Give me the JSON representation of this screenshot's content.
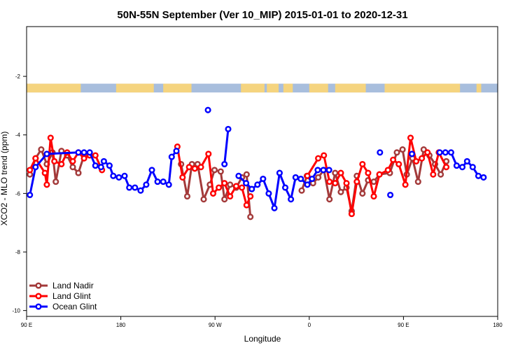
{
  "chart_data": {
    "type": "line",
    "title": "50N-55N September (Ver 10_MIP)   2015-01-01 to 2020-12-31",
    "xlabel": "Longitude",
    "ylabel": "XCO2 - MLO trend (ppm)",
    "xlim": [
      0,
      1
    ],
    "ylim": [
      -10.2,
      -0.3
    ],
    "x_ticks": [
      {
        "pos": 0.0,
        "label": "90 E"
      },
      {
        "pos": 0.2,
        "label": "180"
      },
      {
        "pos": 0.4,
        "label": "90 W"
      },
      {
        "pos": 0.6,
        "label": "0"
      },
      {
        "pos": 0.8,
        "label": "90 E"
      },
      {
        "pos": 1.0,
        "label": "180"
      }
    ],
    "y_ticks": [
      -2,
      -4,
      -6,
      -8,
      -10
    ],
    "grid": false,
    "legend_position": "bottom-left",
    "land_strip": {
      "y_top": -2.25,
      "y_bottom": -2.55,
      "ocean_color": "#a8bedd",
      "land_color": "#f5d47f"
    },
    "series": [
      {
        "name": "Land Nadir",
        "color": "#a33a3a",
        "segments": [
          [
            [
              0.007,
              -5.35
            ],
            [
              0.019,
              -4.8
            ],
            [
              0.031,
              -4.5
            ],
            [
              0.043,
              -5.0
            ],
            [
              0.055,
              -4.6
            ],
            [
              0.062,
              -5.6
            ],
            [
              0.074,
              -4.55
            ],
            [
              0.086,
              -4.7
            ],
            [
              0.098,
              -5.1
            ],
            [
              0.11,
              -5.3
            ],
            [
              0.122,
              -4.7
            ]
          ],
          [
            [
              0.328,
              -5.0
            ],
            [
              0.341,
              -6.1
            ],
            [
              0.351,
              -5.0
            ],
            [
              0.363,
              -5.0
            ],
            [
              0.376,
              -6.2
            ],
            [
              0.389,
              -5.7
            ],
            [
              0.399,
              -5.2
            ],
            [
              0.412,
              -5.25
            ],
            [
              0.42,
              -6.2
            ],
            [
              0.432,
              -5.7
            ],
            [
              0.445,
              -5.8
            ],
            [
              0.457,
              -5.45
            ],
            [
              0.467,
              -5.35
            ],
            [
              0.475,
              -6.8
            ]
          ],
          [
            [
              0.584,
              -5.9
            ],
            [
              0.595,
              -5.4
            ],
            [
              0.608,
              -5.65
            ],
            [
              0.619,
              -5.45
            ],
            [
              0.631,
              -5.2
            ],
            [
              0.643,
              -6.2
            ],
            [
              0.655,
              -5.3
            ],
            [
              0.667,
              -5.95
            ],
            [
              0.679,
              -5.8
            ],
            [
              0.69,
              -6.6
            ],
            [
              0.701,
              -5.4
            ],
            [
              0.713,
              -6.0
            ],
            [
              0.725,
              -5.55
            ],
            [
              0.737,
              -5.6
            ],
            [
              0.749,
              -5.35
            ],
            [
              0.771,
              -5.3
            ],
            [
              0.786,
              -4.6
            ],
            [
              0.798,
              -4.5
            ],
            [
              0.807,
              -5.35
            ],
            [
              0.819,
              -4.8
            ],
            [
              0.831,
              -5.6
            ],
            [
              0.843,
              -4.5
            ],
            [
              0.855,
              -4.7
            ],
            [
              0.867,
              -5.0
            ],
            [
              0.879,
              -5.35
            ],
            [
              0.891,
              -4.9
            ]
          ]
        ]
      },
      {
        "name": "Land Glint",
        "color": "#ff0000",
        "segments": [
          [
            [
              0.007,
              -5.2
            ],
            [
              0.019,
              -4.8
            ],
            [
              0.039,
              -5.3
            ],
            [
              0.043,
              -5.7
            ],
            [
              0.051,
              -4.1
            ],
            [
              0.059,
              -4.9
            ],
            [
              0.074,
              -5.0
            ],
            [
              0.086,
              -4.6
            ],
            [
              0.098,
              -4.9
            ],
            [
              0.11,
              -4.6
            ],
            [
              0.122,
              -4.8
            ],
            [
              0.134,
              -4.7
            ],
            [
              0.146,
              -4.7
            ],
            [
              0.16,
              -5.2
            ]
          ],
          [
            [
              0.32,
              -4.4
            ],
            [
              0.331,
              -5.45
            ],
            [
              0.345,
              -5.1
            ],
            [
              0.357,
              -5.15
            ],
            [
              0.37,
              -5.1
            ],
            [
              0.386,
              -4.65
            ],
            [
              0.396,
              -6.0
            ],
            [
              0.408,
              -5.8
            ],
            [
              0.42,
              -5.65
            ],
            [
              0.432,
              -6.1
            ],
            [
              0.445,
              -5.75
            ],
            [
              0.457,
              -5.8
            ],
            [
              0.467,
              -6.4
            ],
            [
              0.475,
              -6.1
            ]
          ],
          [
            [
              0.596,
              -5.4
            ],
            [
              0.619,
              -4.8
            ],
            [
              0.631,
              -4.7
            ],
            [
              0.643,
              -5.6
            ],
            [
              0.655,
              -5.65
            ],
            [
              0.667,
              -5.3
            ],
            [
              0.679,
              -5.65
            ],
            [
              0.69,
              -6.7
            ],
            [
              0.701,
              -5.6
            ],
            [
              0.713,
              -5.0
            ],
            [
              0.725,
              -5.3
            ],
            [
              0.737,
              -6.1
            ],
            [
              0.749,
              -5.35
            ],
            [
              0.767,
              -5.2
            ],
            [
              0.778,
              -4.85
            ],
            [
              0.79,
              -5.0
            ],
            [
              0.804,
              -5.7
            ],
            [
              0.815,
              -4.1
            ],
            [
              0.827,
              -4.9
            ],
            [
              0.839,
              -4.8
            ],
            [
              0.851,
              -4.6
            ],
            [
              0.863,
              -5.35
            ],
            [
              0.875,
              -4.6
            ],
            [
              0.891,
              -5.1
            ]
          ]
        ]
      },
      {
        "name": "Ocean Glint",
        "color": "#0000ff",
        "segments": [
          [
            [
              0.007,
              -6.05
            ],
            [
              0.019,
              -5.1
            ],
            [
              0.043,
              -4.65
            ],
            [
              0.11,
              -4.6
            ],
            [
              0.122,
              -4.6
            ],
            [
              0.134,
              -4.6
            ],
            [
              0.146,
              -5.05
            ],
            [
              0.158,
              -5.1
            ],
            [
              0.164,
              -4.9
            ],
            [
              0.176,
              -5.05
            ],
            [
              0.184,
              -5.4
            ],
            [
              0.196,
              -5.45
            ],
            [
              0.208,
              -5.4
            ],
            [
              0.218,
              -5.8
            ],
            [
              0.23,
              -5.8
            ],
            [
              0.242,
              -5.9
            ],
            [
              0.254,
              -5.7
            ],
            [
              0.266,
              -5.2
            ],
            [
              0.278,
              -5.6
            ],
            [
              0.29,
              -5.6
            ],
            [
              0.302,
              -5.7
            ],
            [
              0.308,
              -4.75
            ],
            [
              0.318,
              -4.55
            ]
          ],
          [
            [
              0.385,
              -3.15
            ]
          ],
          [
            [
              0.42,
              -5.0
            ],
            [
              0.428,
              -3.8
            ]
          ],
          [
            [
              0.45,
              -5.4
            ],
            [
              0.466,
              -5.65
            ],
            [
              0.478,
              -5.85
            ],
            [
              0.49,
              -5.7
            ],
            [
              0.502,
              -5.5
            ],
            [
              0.514,
              -6.0
            ],
            [
              0.526,
              -6.5
            ],
            [
              0.537,
              -5.3
            ],
            [
              0.549,
              -5.8
            ],
            [
              0.561,
              -6.2
            ],
            [
              0.571,
              -5.45
            ],
            [
              0.582,
              -5.5
            ],
            [
              0.596,
              -5.7
            ],
            [
              0.606,
              -5.5
            ],
            [
              0.618,
              -5.2
            ],
            [
              0.63,
              -5.2
            ],
            [
              0.642,
              -5.2
            ]
          ],
          [
            [
              0.75,
              -4.6
            ]
          ],
          [
            [
              0.772,
              -6.05
            ]
          ],
          [
            [
              0.818,
              -4.65
            ]
          ],
          [
            [
              0.877,
              -4.6
            ],
            [
              0.889,
              -4.6
            ],
            [
              0.901,
              -4.6
            ],
            [
              0.913,
              -5.05
            ],
            [
              0.925,
              -5.1
            ],
            [
              0.935,
              -4.9
            ],
            [
              0.947,
              -5.1
            ],
            [
              0.959,
              -5.4
            ],
            [
              0.97,
              -5.45
            ]
          ]
        ]
      }
    ]
  }
}
